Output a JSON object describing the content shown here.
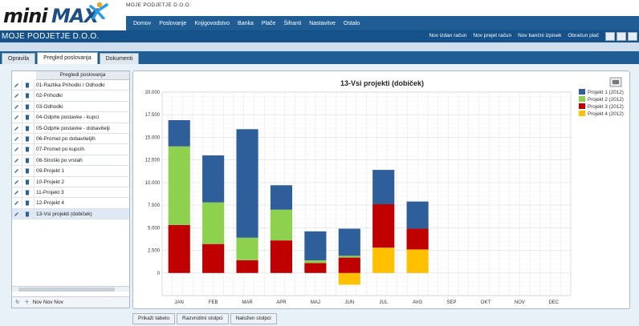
{
  "app": {
    "logo_a": "mini",
    "logo_b": "MAX",
    "company_small": "MOJE PODJETJE D.O.O.",
    "company_title": "MOJE PODJETJE D.O.O."
  },
  "nav": [
    "Domov",
    "Poslovanje",
    "Knjigovodstvo",
    "Banka",
    "Plače",
    "Šifranti",
    "Nastavitve",
    "Ostalo"
  ],
  "quick_actions": [
    "Nov izdan račun",
    "Nov prejet račun",
    "Nov bančni izpisek",
    "Obračun plač"
  ],
  "tabs": [
    "Opravila",
    "Pregled poslovanja",
    "Dokumenti"
  ],
  "active_tab": 1,
  "reports": {
    "header": "Pregledi poslovanja",
    "items": [
      "01-Razlika Prihodki / Odhodki",
      "02-Prihodki",
      "03-Odhodki",
      "04-Odprte postavke - kupci",
      "05-Odprte postavke - dobavitelji",
      "06-Promet po dobaviteljih",
      "07-Promet po kupcih",
      "08-Stroški po vrstah",
      "09-Projekt 1",
      "10-Projekt 2",
      "11-Projekt 3",
      "12-Projekt 4",
      "13-Vsi projekti (dobiček)"
    ],
    "selected": 12,
    "footer": "Nov Nov Nov"
  },
  "bottom_buttons": [
    "Prikaži tabelo",
    "Razvrstitni stolpci",
    "Naložen stolpci"
  ],
  "colors": {
    "nav_bg": "#1f5d94",
    "titlebar_bg": "#16518a",
    "projekt1": "#2e5f9a",
    "projekt2": "#8ed14f",
    "projekt3": "#c00000",
    "projekt4": "#ffc000"
  },
  "chart_data": {
    "type": "bar",
    "stacked": true,
    "title": "13-Vsi projekti (dobiček)",
    "categories": [
      "JAN",
      "FEB",
      "MAR",
      "APR",
      "MAJ",
      "JUN",
      "JUL",
      "AVG",
      "SEP",
      "OKT",
      "NOV",
      "DEC"
    ],
    "series": [
      {
        "name": "Projekt 1 (2012)",
        "values": [
          2900,
          5200,
          12000,
          2700,
          3200,
          3000,
          3800,
          3000,
          0,
          0,
          0,
          0
        ]
      },
      {
        "name": "Projekt 2 (2012)",
        "values": [
          8700,
          4600,
          2500,
          3400,
          300,
          200,
          0,
          0,
          0,
          0,
          0,
          0
        ]
      },
      {
        "name": "Projekt 3 (2012)",
        "values": [
          5300,
          3200,
          1400,
          3600,
          1100,
          1700,
          4800,
          2300,
          0,
          0,
          0,
          0
        ]
      },
      {
        "name": "Projekt 4 (2012)",
        "values": [
          0,
          0,
          0,
          0,
          0,
          -1300,
          2800,
          2600,
          0,
          0,
          0,
          0
        ]
      }
    ],
    "ylim": [
      -2500,
      20000
    ],
    "yticks": [
      "20.000",
      "17.500",
      "15.000",
      "12.500",
      "10.000",
      "7.500",
      "5.000",
      "2.500",
      "0"
    ],
    "ytick_values": [
      20000,
      17500,
      15000,
      12500,
      10000,
      7500,
      5000,
      2500,
      0
    ],
    "grid": true,
    "legend_position": "top-right"
  }
}
